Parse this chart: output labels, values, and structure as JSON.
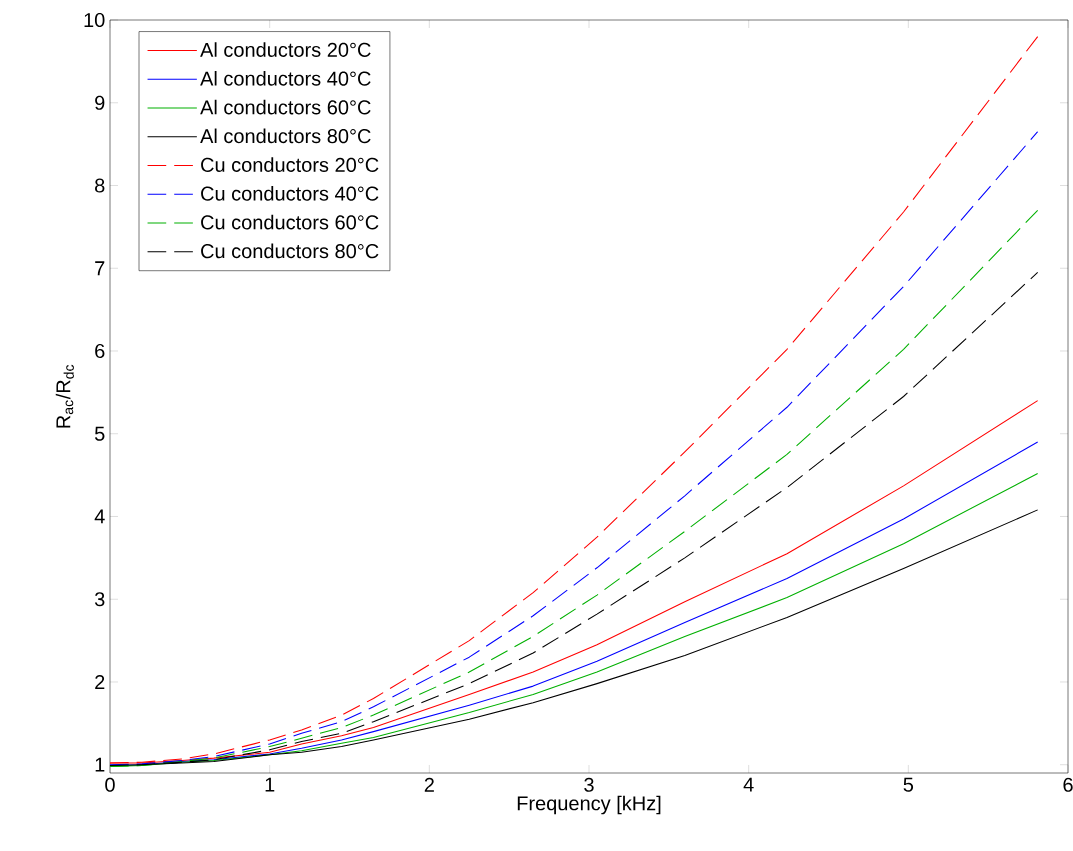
{
  "chart_data": {
    "type": "line",
    "xlabel": "Frequency  [kHz]",
    "ylabel": "R$_{ac}$/R$_{dc}$",
    "x": [
      0,
      0.2,
      0.45,
      0.65,
      1.0,
      1.2,
      1.45,
      1.65,
      2.25,
      2.65,
      3.05,
      3.6,
      4.24,
      4.97,
      5.81
    ],
    "series": [
      {
        "name": "Al conductors 20°C",
        "color": "#ff0000",
        "line_style": "solid",
        "values": [
          1.02,
          1.02,
          1.05,
          1.08,
          1.15,
          1.25,
          1.35,
          1.45,
          1.85,
          2.12,
          2.45,
          2.97,
          3.55,
          4.37,
          5.4
        ]
      },
      {
        "name": "Al conductors 40°C",
        "color": "#0000ff",
        "line_style": "solid",
        "values": [
          0.99,
          1.0,
          1.04,
          1.06,
          1.13,
          1.2,
          1.3,
          1.4,
          1.72,
          1.95,
          2.25,
          2.72,
          3.25,
          3.97,
          4.9
        ]
      },
      {
        "name": "Al conductors 60°C",
        "color": "#00b000",
        "line_style": "solid",
        "values": [
          0.98,
          0.99,
          1.03,
          1.05,
          1.12,
          1.17,
          1.26,
          1.33,
          1.63,
          1.85,
          2.12,
          2.55,
          3.02,
          3.67,
          4.52
        ]
      },
      {
        "name": "Al conductors 80°C",
        "color": "#000000",
        "line_style": "solid",
        "values": [
          0.99,
          1.0,
          1.02,
          1.04,
          1.12,
          1.15,
          1.22,
          1.3,
          1.55,
          1.75,
          1.98,
          2.32,
          2.78,
          3.37,
          4.08
        ]
      },
      {
        "name": "Cu conductors 20°C",
        "color": "#ff0000",
        "line_style": "dashed",
        "values": [
          1.02,
          1.03,
          1.07,
          1.13,
          1.3,
          1.42,
          1.6,
          1.8,
          2.5,
          3.08,
          3.75,
          4.78,
          6.02,
          7.68,
          9.8
        ]
      },
      {
        "name": "Cu conductors 40°C",
        "color": "#0000ff",
        "line_style": "dashed",
        "values": [
          1.0,
          1.01,
          1.05,
          1.1,
          1.25,
          1.38,
          1.52,
          1.7,
          2.3,
          2.8,
          3.38,
          4.25,
          5.32,
          6.78,
          8.65
        ]
      },
      {
        "name": "Cu conductors 60°C",
        "color": "#00b000",
        "line_style": "dashed",
        "values": [
          0.98,
          0.99,
          1.04,
          1.08,
          1.22,
          1.32,
          1.45,
          1.6,
          2.12,
          2.55,
          3.05,
          3.82,
          4.75,
          6.02,
          7.7
        ]
      },
      {
        "name": "Cu conductors 80°C",
        "color": "#000000",
        "line_style": "dashed",
        "values": [
          0.99,
          1.0,
          1.03,
          1.06,
          1.18,
          1.28,
          1.38,
          1.52,
          1.98,
          2.35,
          2.82,
          3.5,
          4.35,
          5.45,
          6.95
        ]
      }
    ],
    "xlim": [
      0,
      6
    ],
    "xticks": [
      0,
      1,
      2,
      3,
      4,
      5,
      6
    ],
    "ylim": [
      0.9,
      10
    ],
    "yticks": [
      1,
      2,
      3,
      4,
      5,
      6,
      7,
      8,
      9,
      10
    ],
    "grid": false,
    "legend": "top left",
    "marker": "none"
  }
}
